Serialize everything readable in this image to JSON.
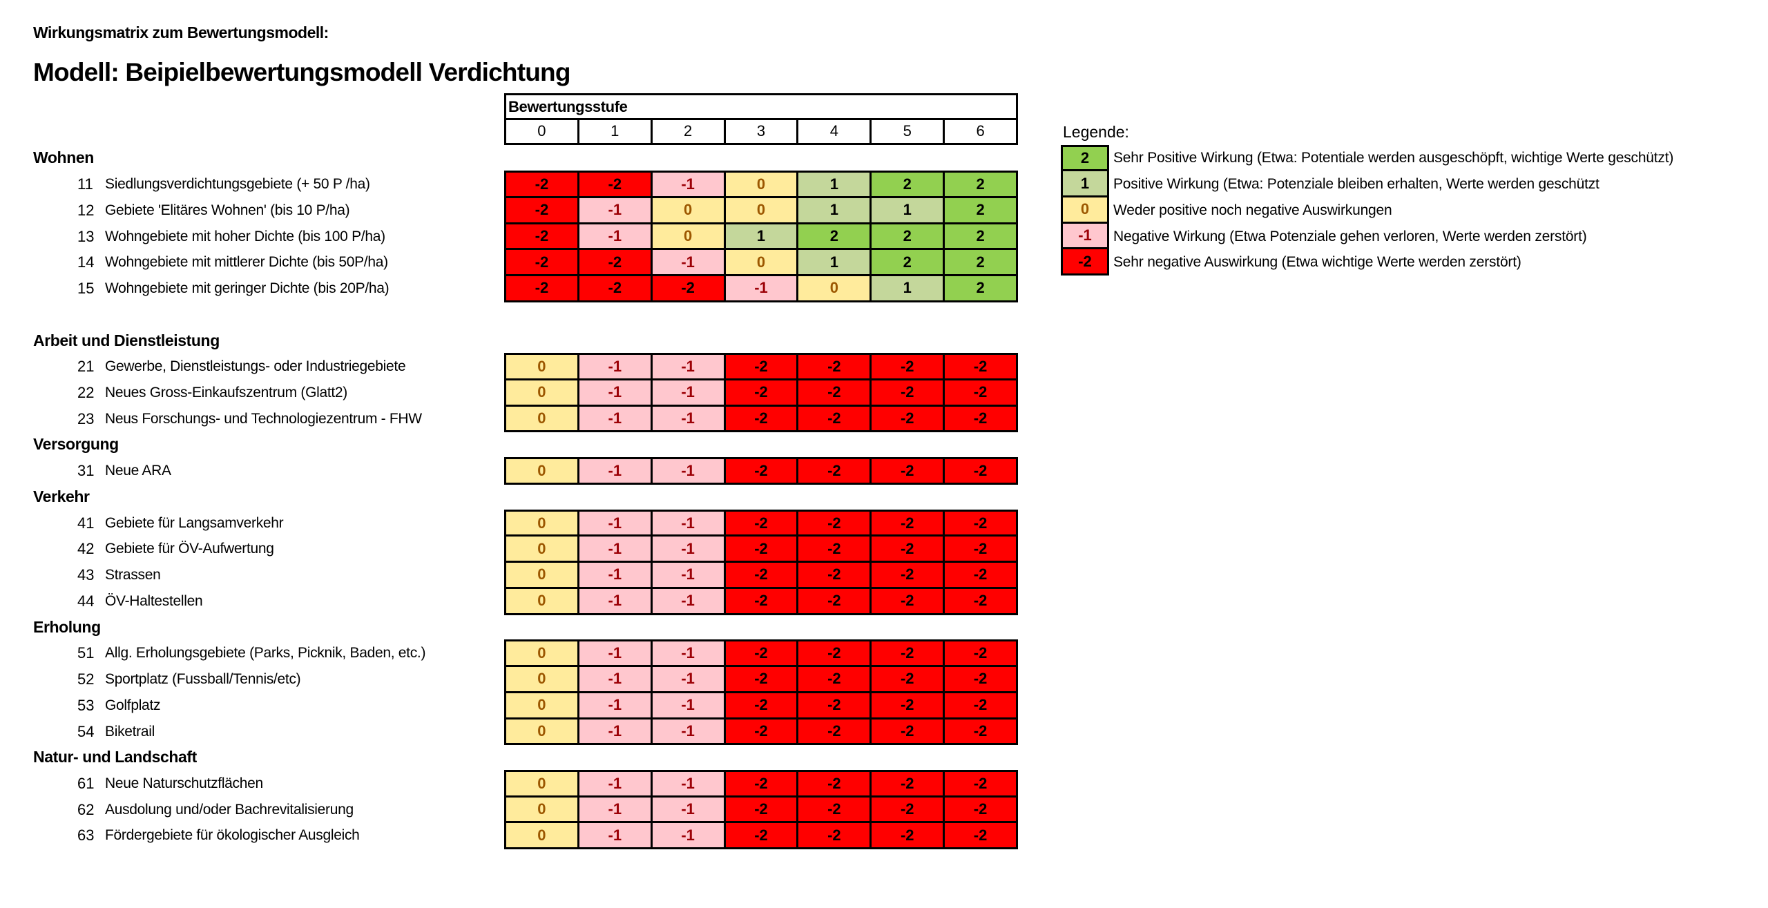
{
  "title": "Wirkungsmatrix zum Bewertungsmodell:",
  "model_title": "Modell: Beipielbewertungsmodell Verdichtung",
  "header": {
    "label": "Bewertungsstufe",
    "levels": [
      "0",
      "1",
      "2",
      "3",
      "4",
      "5",
      "6"
    ]
  },
  "colors": {
    "2": {
      "bg": "#92D050",
      "fg": "#000000"
    },
    "1": {
      "bg": "#C4D79B",
      "fg": "#000000"
    },
    "0": {
      "bg": "#FFEB9C",
      "fg": "#9C5700"
    },
    "-1": {
      "bg": "#FFC7CE",
      "fg": "#9C0006"
    },
    "-2": {
      "bg": "#FF0000",
      "fg": "#000000"
    }
  },
  "categories": [
    {
      "name": "Wohnen",
      "items": [
        {
          "num": "11",
          "label": "Siedlungsverdichtungsgebiete (+ 50 P /ha)",
          "values": [
            "-2",
            "-2",
            "-1",
            "0",
            "1",
            "2",
            "2"
          ]
        },
        {
          "num": "12",
          "label": "Gebiete 'Elitäres Wohnen' (bis 10 P/ha)",
          "values": [
            "-2",
            "-1",
            "0",
            "0",
            "1",
            "1",
            "2"
          ]
        },
        {
          "num": "13",
          "label": "Wohngebiete mit hoher Dichte (bis 100 P/ha)",
          "values": [
            "-2",
            "-1",
            "0",
            "1",
            "2",
            "2",
            "2"
          ]
        },
        {
          "num": "14",
          "label": "Wohngebiete mit mittlerer Dichte (bis 50P/ha)",
          "values": [
            "-2",
            "-2",
            "-1",
            "0",
            "1",
            "2",
            "2"
          ]
        },
        {
          "num": "15",
          "label": "Wohngebiete mit geringer Dichte (bis 20P/ha)",
          "values": [
            "-2",
            "-2",
            "-2",
            "-1",
            "0",
            "1",
            "2"
          ]
        }
      ]
    },
    {
      "name": "Arbeit und Dienstleistung",
      "items": [
        {
          "num": "21",
          "label": "Gewerbe, Dienstleistungs- oder Industriegebiete",
          "values": [
            "0",
            "-1",
            "-1",
            "-2",
            "-2",
            "-2",
            "-2"
          ]
        },
        {
          "num": "22",
          "label": "Neues Gross-Einkaufszentrum (Glatt2)",
          "values": [
            "0",
            "-1",
            "-1",
            "-2",
            "-2",
            "-2",
            "-2"
          ]
        },
        {
          "num": "23",
          "label": "Neus Forschungs- und Technologiezentrum - FHW",
          "values": [
            "0",
            "-1",
            "-1",
            "-2",
            "-2",
            "-2",
            "-2"
          ]
        }
      ]
    },
    {
      "name": "Versorgung",
      "items": [
        {
          "num": "31",
          "label": "Neue ARA",
          "values": [
            "0",
            "-1",
            "-1",
            "-2",
            "-2",
            "-2",
            "-2"
          ]
        }
      ]
    },
    {
      "name": "Verkehr",
      "items": [
        {
          "num": "41",
          "label": "Gebiete für Langsamverkehr",
          "values": [
            "0",
            "-1",
            "-1",
            "-2",
            "-2",
            "-2",
            "-2"
          ]
        },
        {
          "num": "42",
          "label": "Gebiete für ÖV-Aufwertung",
          "values": [
            "0",
            "-1",
            "-1",
            "-2",
            "-2",
            "-2",
            "-2"
          ]
        },
        {
          "num": "43",
          "label": "Strassen",
          "values": [
            "0",
            "-1",
            "-1",
            "-2",
            "-2",
            "-2",
            "-2"
          ]
        },
        {
          "num": "44",
          "label": "ÖV-Haltestellen",
          "values": [
            "0",
            "-1",
            "-1",
            "-2",
            "-2",
            "-2",
            "-2"
          ]
        }
      ]
    },
    {
      "name": "Erholung",
      "items": [
        {
          "num": "51",
          "label": "Allg. Erholungsgebiete (Parks, Picknik, Baden, etc.)",
          "values": [
            "0",
            "-1",
            "-1",
            "-2",
            "-2",
            "-2",
            "-2"
          ]
        },
        {
          "num": "52",
          "label": "Sportplatz (Fussball/Tennis/etc)",
          "values": [
            "0",
            "-1",
            "-1",
            "-2",
            "-2",
            "-2",
            "-2"
          ]
        },
        {
          "num": "53",
          "label": "Golfplatz",
          "values": [
            "0",
            "-1",
            "-1",
            "-2",
            "-2",
            "-2",
            "-2"
          ]
        },
        {
          "num": "54",
          "label": "Biketrail",
          "values": [
            "0",
            "-1",
            "-1",
            "-2",
            "-2",
            "-2",
            "-2"
          ]
        }
      ]
    },
    {
      "name": "Natur- und Landschaft",
      "items": [
        {
          "num": "61",
          "label": "Neue Naturschutzflächen",
          "values": [
            "0",
            "-1",
            "-1",
            "-2",
            "-2",
            "-2",
            "-2"
          ]
        },
        {
          "num": "62",
          "label": "Ausdolung und/oder Bachrevitalisierung",
          "values": [
            "0",
            "-1",
            "-1",
            "-2",
            "-2",
            "-2",
            "-2"
          ]
        },
        {
          "num": "63",
          "label": "Fördergebiete für ökologischer Ausgleich",
          "values": [
            "0",
            "-1",
            "-1",
            "-2",
            "-2",
            "-2",
            "-2"
          ]
        }
      ]
    }
  ],
  "legend": {
    "title": "Legende:",
    "entries": [
      {
        "value": "2",
        "text": "Sehr Positive Wirkung (Etwa: Potentiale werden ausgeschöpft, wichtige Werte geschützt)"
      },
      {
        "value": "1",
        "text": "Positive Wirkung (Etwa: Potenziale bleiben erhalten, Werte werden geschützt"
      },
      {
        "value": "0",
        "text": "Weder positive noch negative Auswirkungen"
      },
      {
        "value": "-1",
        "text": "Negative Wirkung (Etwa Potenziale gehen verloren, Werte werden zerstört)"
      },
      {
        "value": "-2",
        "text": "Sehr negative Auswirkung (Etwa wichtige Werte werden zerstört)"
      }
    ]
  }
}
